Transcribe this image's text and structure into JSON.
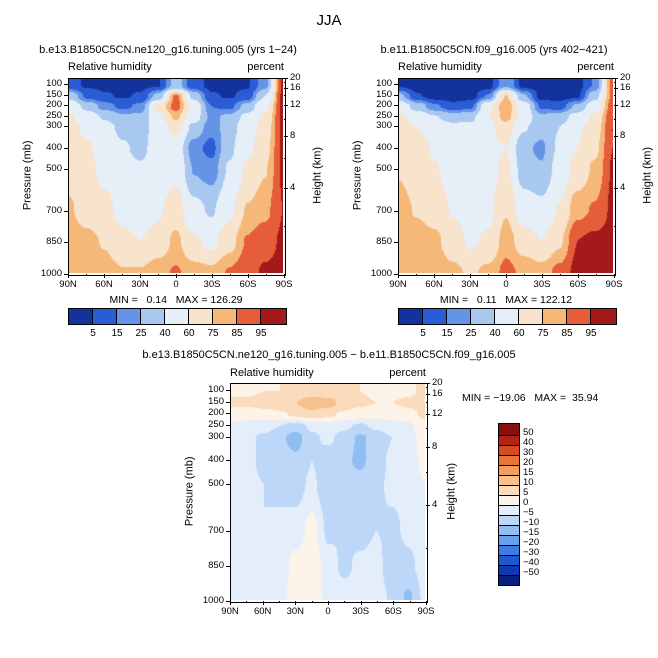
{
  "title": "JJA",
  "colors": {
    "background": "#ffffff",
    "text": "#000000",
    "frame": "#000000"
  },
  "chart_data": [
    {
      "type": "heatmap",
      "title": "b.e13.B1850C5CN.ne120_g16.tuning.005 (yrs 1−24)",
      "field": "Relative humidity",
      "units": "percent",
      "ylabel": "Pressure (mb)",
      "y2label": "Height (km)",
      "xlabel_ticks": [
        "90N",
        "60N",
        "30N",
        "0",
        "30S",
        "60S",
        "90S"
      ],
      "height_ticks": [
        20,
        16,
        12,
        8,
        4
      ],
      "lat": [
        90,
        75,
        60,
        45,
        30,
        15,
        0,
        -15,
        -30,
        -45,
        -60,
        -75,
        -90
      ],
      "pressure": [
        100,
        150,
        200,
        250,
        300,
        400,
        500,
        700,
        850,
        1000
      ],
      "values": [
        [
          8,
          4,
          3,
          3,
          3,
          4,
          30,
          8,
          3,
          3,
          4,
          20,
          96
        ],
        [
          35,
          12,
          6,
          4,
          6,
          30,
          88,
          35,
          6,
          4,
          8,
          40,
          97
        ],
        [
          55,
          35,
          20,
          12,
          18,
          65,
          90,
          55,
          15,
          12,
          30,
          55,
          97
        ],
        [
          62,
          50,
          38,
          28,
          28,
          55,
          78,
          48,
          22,
          28,
          45,
          62,
          97
        ],
        [
          66,
          56,
          46,
          36,
          32,
          50,
          65,
          35,
          18,
          32,
          52,
          66,
          97
        ],
        [
          70,
          62,
          52,
          42,
          36,
          48,
          52,
          18,
          12,
          36,
          56,
          70,
          96
        ],
        [
          72,
          64,
          56,
          46,
          42,
          50,
          55,
          24,
          18,
          42,
          62,
          74,
          96
        ],
        [
          76,
          70,
          64,
          55,
          50,
          58,
          68,
          45,
          38,
          56,
          76,
          82,
          95
        ],
        [
          80,
          78,
          74,
          64,
          60,
          66,
          78,
          62,
          56,
          70,
          86,
          92,
          96
        ],
        [
          76,
          80,
          80,
          76,
          76,
          82,
          86,
          80,
          78,
          86,
          92,
          96,
          97
        ]
      ],
      "levels": [
        5,
        15,
        25,
        40,
        60,
        75,
        85,
        95
      ],
      "palette": [
        "#14329c",
        "#2a5cd6",
        "#6593e6",
        "#a8c8f0",
        "#e6eef8",
        "#f8e3cd",
        "#f6b879",
        "#e65d3a",
        "#a41a1a"
      ],
      "stats": {
        "min": 0.14,
        "max": 126.29,
        "text": "MIN =   0.14   MAX = 126.29"
      }
    },
    {
      "type": "heatmap",
      "title": "b.e11.B1850C5CN.f09_g16.005 (yrs 402−421)",
      "field": "Relative humidity",
      "units": "percent",
      "ylabel": "Pressure (mb)",
      "y2label": "Height (km)",
      "xlabel_ticks": [
        "90N",
        "60N",
        "30N",
        "0",
        "30S",
        "60S",
        "90S"
      ],
      "height_ticks": [
        20,
        16,
        12,
        8,
        4
      ],
      "lat": [
        90,
        75,
        60,
        45,
        30,
        15,
        0,
        -15,
        -30,
        -45,
        -60,
        -75,
        -90
      ],
      "pressure": [
        100,
        150,
        200,
        250,
        300,
        400,
        500,
        700,
        850,
        1000
      ],
      "values": [
        [
          4,
          1,
          1,
          1,
          1,
          1,
          23,
          2,
          1,
          1,
          1,
          16,
          90
        ],
        [
          29,
          6,
          1,
          1,
          1,
          16,
          76,
          27,
          1,
          1,
          3,
          34,
          88
        ],
        [
          53,
          33,
          17,
          8,
          12,
          57,
          84,
          51,
          13,
          10,
          28,
          52,
          91
        ],
        [
          63,
          52,
          41,
          33,
          36,
          59,
          80,
          52,
          28,
          32,
          47,
          63,
          94
        ],
        [
          68,
          60,
          52,
          45,
          44,
          56,
          69,
          42,
          29,
          40,
          57,
          68,
          95
        ],
        [
          73,
          66,
          58,
          49,
          45,
          53,
          60,
          27,
          23,
          43,
          60,
          72,
          95
        ],
        [
          74,
          68,
          61,
          52,
          49,
          54,
          64,
          31,
          26,
          48,
          66,
          77,
          96
        ],
        [
          79,
          74,
          69,
          59,
          53,
          56,
          74,
          50,
          45,
          61,
          82,
          86,
          97
        ],
        [
          82,
          81,
          78,
          67,
          58,
          62,
          81,
          68,
          60,
          73,
          95,
          98,
          99
        ],
        [
          77,
          82,
          83,
          78,
          73,
          78,
          88,
          83,
          80,
          88,
          98,
          99,
          99
        ]
      ],
      "levels": [
        5,
        15,
        25,
        40,
        60,
        75,
        85,
        95
      ],
      "palette": [
        "#14329c",
        "#2a5cd6",
        "#6593e6",
        "#a8c8f0",
        "#e6eef8",
        "#f8e3cd",
        "#f6b879",
        "#e65d3a",
        "#a41a1a"
      ],
      "stats": {
        "min": 0.11,
        "max": 122.12,
        "text": "MIN =   0.11   MAX = 122.12"
      }
    },
    {
      "type": "heatmap",
      "title": "b.e13.B1850C5CN.ne120_g16.tuning.005 − b.e11.B1850C5CN.f09_g16.005",
      "field": "Relative humidity",
      "units": "percent",
      "ylabel": "Pressure (mb)",
      "y2label": "Height (km)",
      "xlabel_ticks": [
        "90N",
        "60N",
        "30N",
        "0",
        "30S",
        "60S",
        "90S"
      ],
      "height_ticks": [
        20,
        16,
        12,
        8,
        4
      ],
      "lat": [
        90,
        75,
        60,
        45,
        30,
        15,
        0,
        -15,
        -30,
        -45,
        -60,
        -75,
        -90
      ],
      "pressure": [
        100,
        150,
        200,
        250,
        300,
        400,
        500,
        700,
        850,
        1000
      ],
      "values": [
        [
          4,
          4,
          5,
          5,
          6,
          7,
          7,
          6,
          5,
          4,
          4,
          4,
          6
        ],
        [
          6,
          6,
          7,
          8,
          10,
          14,
          12,
          8,
          6,
          5,
          5,
          6,
          9
        ],
        [
          2,
          2,
          3,
          4,
          6,
          8,
          6,
          4,
          2,
          2,
          2,
          3,
          6
        ],
        [
          -1,
          -2,
          -3,
          -5,
          -8,
          -4,
          -2,
          -4,
          -6,
          -4,
          -2,
          -1,
          3
        ],
        [
          -2,
          -4,
          -6,
          -9,
          -12,
          -6,
          -4,
          -7,
          -11,
          -8,
          -5,
          -2,
          2
        ],
        [
          -3,
          -4,
          -6,
          -7,
          -9,
          -5,
          -8,
          -9,
          -11,
          -7,
          -4,
          -2,
          1
        ],
        [
          -2,
          -4,
          -5,
          -6,
          -7,
          -4,
          -9,
          -7,
          -8,
          -6,
          -4,
          -3,
          0
        ],
        [
          -3,
          -4,
          -5,
          -4,
          -3,
          2,
          -6,
          -5,
          -7,
          -5,
          -6,
          -4,
          -2
        ],
        [
          -2,
          -3,
          -4,
          -3,
          2,
          4,
          -3,
          -6,
          -4,
          -3,
          -9,
          -6,
          -3
        ],
        [
          -1,
          -2,
          -3,
          -2,
          3,
          4,
          -2,
          -3,
          -2,
          -2,
          -6,
          -11,
          -4
        ]
      ],
      "levels": [
        -50,
        -40,
        -30,
        -20,
        -15,
        -10,
        -5,
        0,
        5,
        10,
        15,
        20,
        30,
        40,
        50
      ],
      "palette": [
        "#0a2080",
        "#1238b0",
        "#1f57d0",
        "#3f7ce2",
        "#69a0ee",
        "#92bdf2",
        "#bcd7f7",
        "#e3eefa",
        "#fdf3e8",
        "#fadcbc",
        "#f7c18e",
        "#f29e5f",
        "#e97439",
        "#d44a24",
        "#b02418",
        "#870f0f"
      ],
      "stats": {
        "min": -19.06,
        "max": 35.94,
        "text": "MIN = −19.06   MAX =  35.94"
      }
    }
  ]
}
